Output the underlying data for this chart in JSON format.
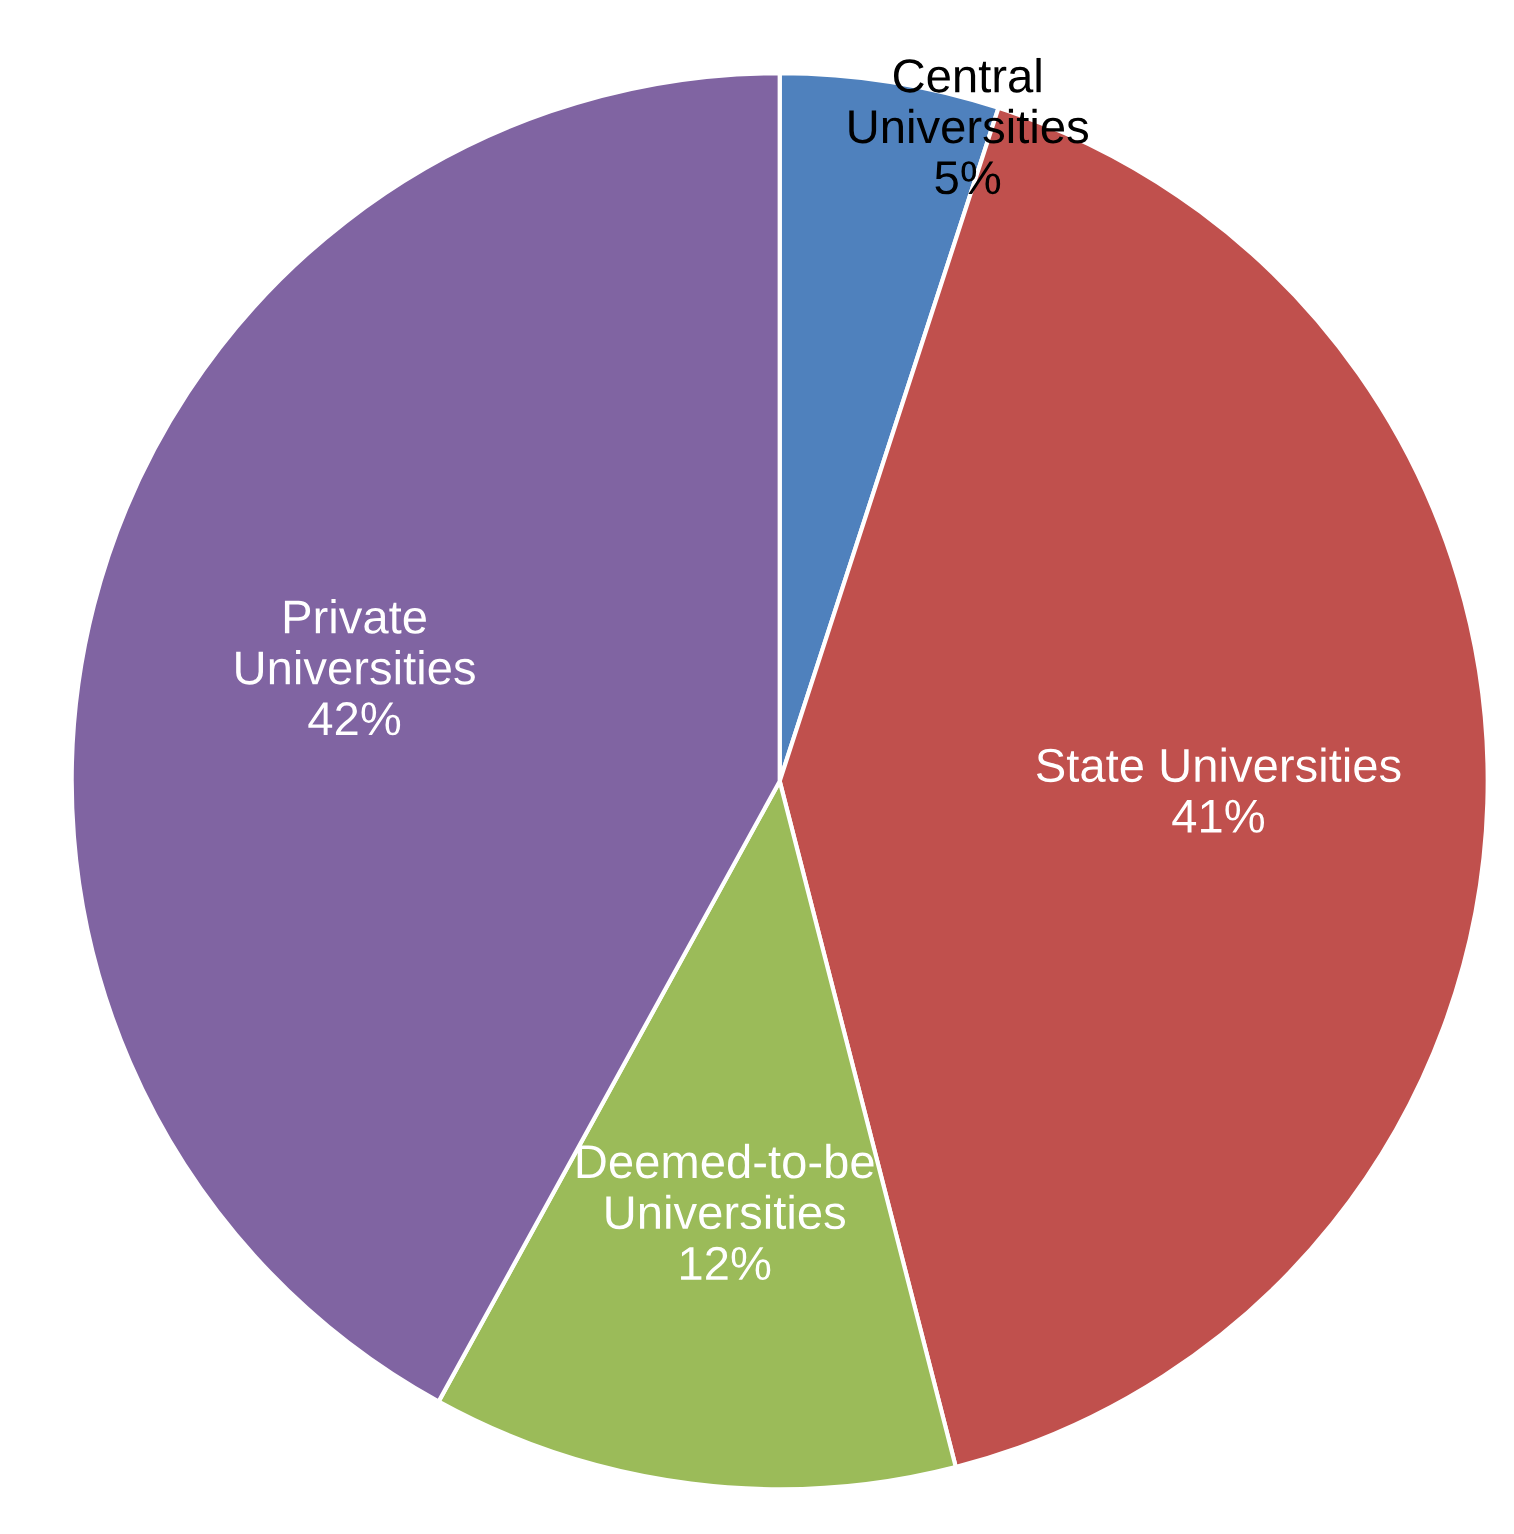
{
  "chart_data": {
    "type": "pie",
    "categories": [
      "Central Universities",
      "State Universities",
      "Deemed-to-be Universities",
      "Private Universities"
    ],
    "values": [
      5,
      41,
      12,
      42
    ],
    "colors": [
      "#4f81bd",
      "#c0504d",
      "#9bbb59",
      "#8064a2"
    ],
    "value_labels": [
      "5%",
      "41%",
      "12%",
      "42%"
    ],
    "legend": false
  }
}
